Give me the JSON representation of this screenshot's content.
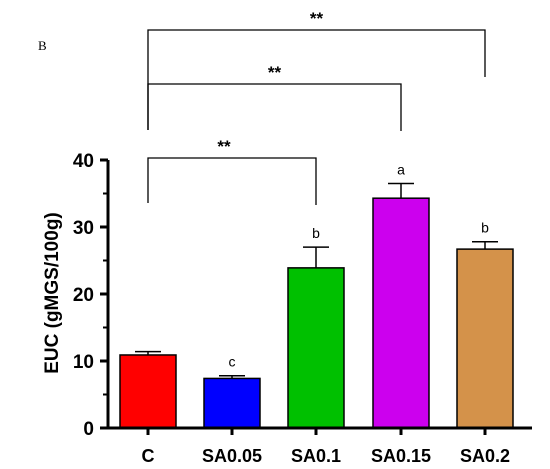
{
  "panel_label": "B",
  "chart_data": {
    "type": "bar",
    "title": "",
    "xlabel": "",
    "ylabel": "EUC (gMGS/100g)",
    "ylim": [
      0,
      40
    ],
    "yticks": [
      0,
      10,
      20,
      30,
      40
    ],
    "categories": [
      "C",
      "SA0.05",
      "SA0.1",
      "SA0.15",
      "SA0.2"
    ],
    "values": [
      10.9,
      7.4,
      23.9,
      34.3,
      26.7
    ],
    "errors": [
      0.5,
      0.4,
      3.1,
      2.2,
      1.1
    ],
    "colors": [
      "#ff0000",
      "#0000ff",
      "#00c000",
      "#cc00ee",
      "#d4924a"
    ],
    "significance_letters": [
      "",
      "c",
      "b",
      "a",
      "b"
    ],
    "comparisons": [
      {
        "from": "C",
        "to": "SA0.1",
        "label": "**"
      },
      {
        "from": "C",
        "to": "SA0.15",
        "label": "**"
      },
      {
        "from": "C",
        "to": "SA0.2",
        "label": "**"
      }
    ],
    "grid": false
  }
}
